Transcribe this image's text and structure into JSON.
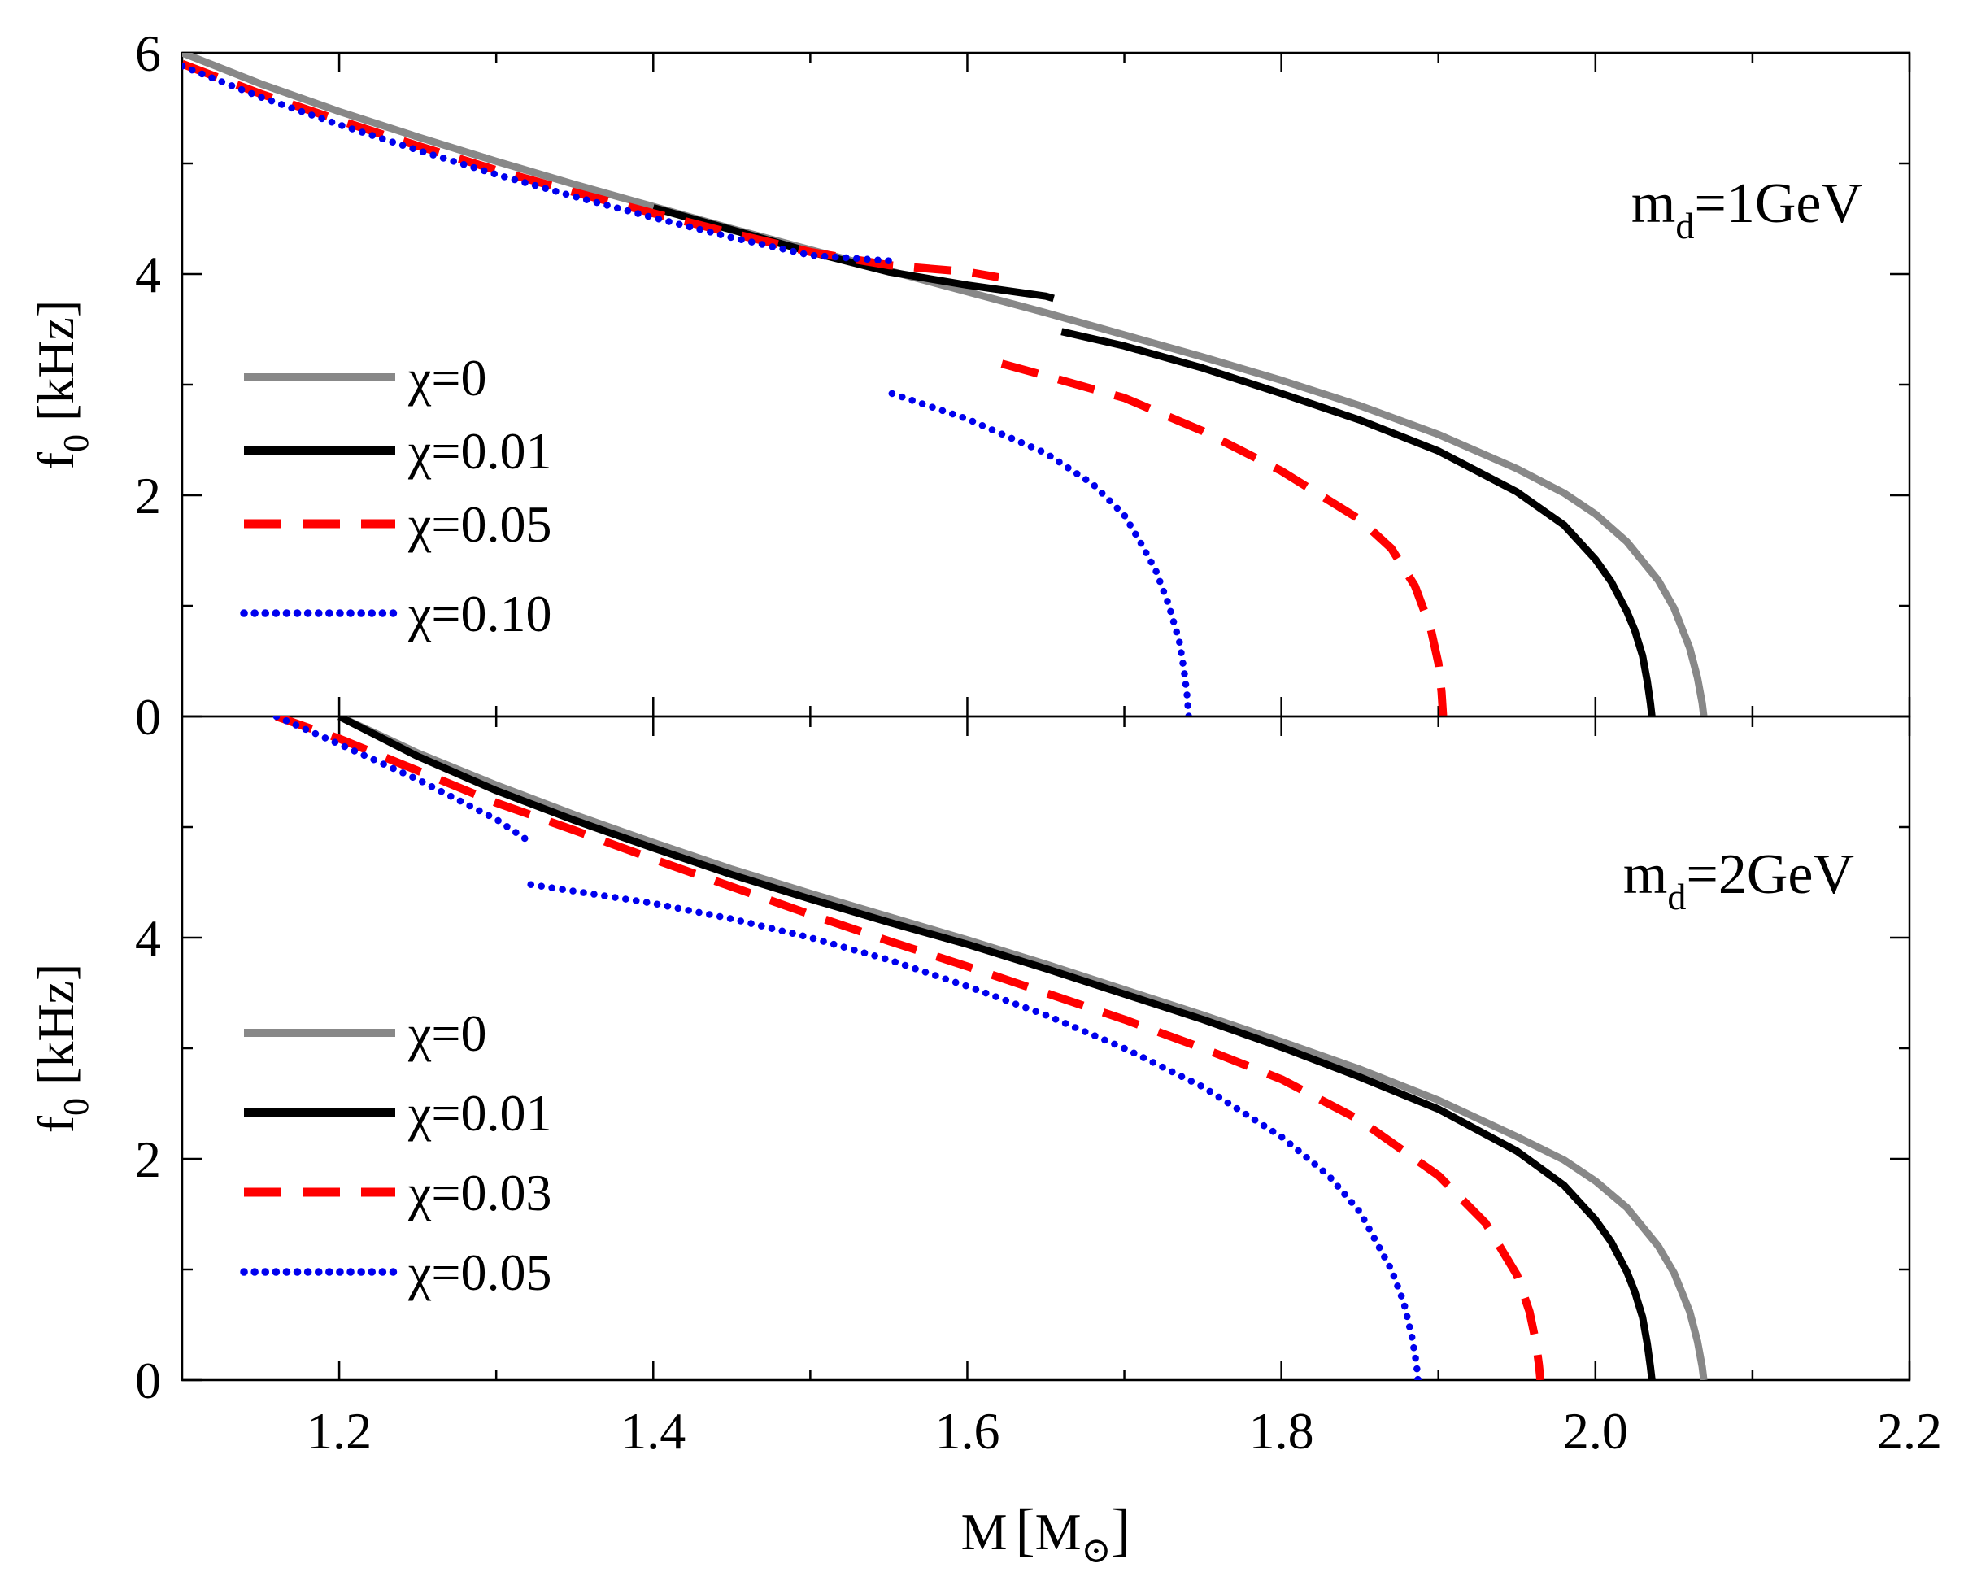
{
  "chart_data": [
    {
      "type": "line",
      "panel_label": {
        "main": "m",
        "sub": "d",
        "rest": "=1GeV"
      },
      "ylabel": {
        "main": "f",
        "sub": "0",
        "rest": " [kHz]"
      },
      "xlim": [
        1.1,
        2.2
      ],
      "ylim": [
        0,
        6
      ],
      "y_tick_labels": [
        "0",
        "2",
        "4",
        "6"
      ],
      "y_minor_ticks": [
        1,
        3,
        5
      ],
      "legend_placement": "left",
      "series": [
        {
          "name": "χ=0",
          "style": "solid",
          "color": "#888888",
          "x": [
            1.1,
            1.15,
            1.2,
            1.25,
            1.3,
            1.35,
            1.4,
            1.45,
            1.5,
            1.55,
            1.6,
            1.65,
            1.7,
            1.75,
            1.8,
            1.85,
            1.9,
            1.95,
            1.98,
            2.0,
            2.02,
            2.04,
            2.05,
            2.06,
            2.065,
            2.068,
            2.069
          ],
          "y": [
            6.0,
            5.72,
            5.47,
            5.24,
            5.02,
            4.81,
            4.61,
            4.41,
            4.22,
            4.03,
            3.84,
            3.65,
            3.45,
            3.25,
            3.04,
            2.81,
            2.55,
            2.24,
            2.02,
            1.83,
            1.58,
            1.23,
            0.98,
            0.62,
            0.35,
            0.12,
            0.0
          ]
        },
        {
          "name": "χ=0.01",
          "style": "solid",
          "color": "#000000",
          "x": [
            1.4,
            1.45,
            1.5,
            1.55,
            1.6,
            1.65,
            1.655,
            1.66,
            1.7,
            1.75,
            1.8,
            1.85,
            1.9,
            1.95,
            1.98,
            2.0,
            2.01,
            2.02,
            2.025,
            2.03,
            2.033,
            2.035,
            2.036
          ],
          "y": [
            4.6,
            4.4,
            4.2,
            4.02,
            3.9,
            3.8,
            3.78,
            3.48,
            3.35,
            3.15,
            2.92,
            2.68,
            2.4,
            2.03,
            1.73,
            1.42,
            1.22,
            0.95,
            0.78,
            0.55,
            0.32,
            0.12,
            0.0
          ]
        },
        {
          "name": "χ=0.05",
          "style": "dashed",
          "color": "#ff0000",
          "x": [
            1.1,
            1.15,
            1.2,
            1.25,
            1.3,
            1.35,
            1.4,
            1.45,
            1.5,
            1.55,
            1.6,
            1.62,
            1.622,
            1.65,
            1.7,
            1.75,
            1.8,
            1.85,
            1.87,
            1.885,
            1.895,
            1.9,
            1.902,
            1.903
          ],
          "y": [
            5.9,
            5.63,
            5.39,
            5.16,
            4.94,
            4.74,
            4.55,
            4.37,
            4.2,
            4.08,
            4.02,
            3.97,
            3.19,
            3.08,
            2.88,
            2.58,
            2.22,
            1.78,
            1.52,
            1.18,
            0.8,
            0.48,
            0.22,
            0.0
          ]
        },
        {
          "name": "χ=0.10",
          "style": "dotted",
          "color": "#0000ee",
          "x": [
            1.1,
            1.15,
            1.2,
            1.25,
            1.3,
            1.35,
            1.4,
            1.45,
            1.5,
            1.54,
            1.55,
            1.552,
            1.6,
            1.65,
            1.68,
            1.7,
            1.71,
            1.72,
            1.728,
            1.735,
            1.738,
            1.74,
            1.741
          ],
          "y": [
            5.88,
            5.6,
            5.35,
            5.12,
            4.9,
            4.7,
            4.51,
            4.33,
            4.17,
            4.13,
            4.12,
            2.92,
            2.69,
            2.38,
            2.1,
            1.82,
            1.58,
            1.32,
            1.02,
            0.68,
            0.42,
            0.18,
            0.0
          ]
        }
      ]
    },
    {
      "type": "line",
      "panel_label": {
        "main": "m",
        "sub": "d",
        "rest": "=2GeV"
      },
      "ylabel": {
        "main": "f",
        "sub": "0",
        "rest": " [kHz]"
      },
      "xlim": [
        1.1,
        2.2
      ],
      "ylim": [
        0,
        6
      ],
      "y_tick_labels": [
        "0",
        "2",
        "4"
      ],
      "y_minor_ticks": [
        1,
        3,
        5
      ],
      "legend_placement": "lower-left",
      "xlabel": {
        "main": "M",
        "open": "[",
        "unit": "M",
        "sub": "⊙",
        "close": "]"
      },
      "x_tick_values": [
        1.2,
        1.4,
        1.6,
        1.8,
        2.0,
        2.2
      ],
      "x_tick_labels": [
        "1.2",
        "1.4",
        "1.6",
        "1.8",
        "2.0",
        "2.2"
      ],
      "x_minor_ticks": [
        1.3,
        1.5,
        1.7,
        1.9,
        2.1
      ],
      "series": [
        {
          "name": "χ=0",
          "style": "solid",
          "color": "#888888",
          "x": [
            1.2,
            1.25,
            1.3,
            1.35,
            1.4,
            1.45,
            1.5,
            1.55,
            1.6,
            1.65,
            1.7,
            1.75,
            1.8,
            1.85,
            1.9,
            1.95,
            1.98,
            2.0,
            2.02,
            2.04,
            2.05,
            2.06,
            2.065,
            2.068,
            2.069
          ],
          "y": [
            6.0,
            5.67,
            5.38,
            5.11,
            4.86,
            4.62,
            4.4,
            4.19,
            3.98,
            3.76,
            3.53,
            3.3,
            3.06,
            2.81,
            2.53,
            2.2,
            1.99,
            1.8,
            1.56,
            1.21,
            0.97,
            0.62,
            0.35,
            0.12,
            0.0
          ]
        },
        {
          "name": "χ=0.01",
          "style": "solid",
          "color": "#000000",
          "x": [
            1.2,
            1.25,
            1.3,
            1.35,
            1.4,
            1.45,
            1.5,
            1.55,
            1.6,
            1.65,
            1.7,
            1.75,
            1.8,
            1.85,
            1.9,
            1.95,
            1.98,
            2.0,
            2.01,
            2.02,
            2.025,
            2.03,
            2.033,
            2.035,
            2.036
          ],
          "y": [
            6.0,
            5.64,
            5.33,
            5.06,
            4.81,
            4.57,
            4.35,
            4.14,
            3.94,
            3.72,
            3.49,
            3.26,
            3.01,
            2.74,
            2.45,
            2.07,
            1.76,
            1.45,
            1.25,
            0.98,
            0.8,
            0.57,
            0.33,
            0.12,
            0.0
          ]
        },
        {
          "name": "χ=0.03",
          "style": "dashed",
          "color": "#ff0000",
          "x": [
            1.16,
            1.2,
            1.25,
            1.3,
            1.35,
            1.4,
            1.45,
            1.5,
            1.55,
            1.6,
            1.65,
            1.7,
            1.75,
            1.8,
            1.85,
            1.9,
            1.93,
            1.95,
            1.958,
            1.962,
            1.964,
            1.965
          ],
          "y": [
            6.0,
            5.8,
            5.51,
            5.22,
            4.97,
            4.71,
            4.46,
            4.21,
            3.97,
            3.74,
            3.5,
            3.26,
            3.0,
            2.72,
            2.35,
            1.85,
            1.42,
            0.95,
            0.62,
            0.35,
            0.14,
            0.0
          ]
        },
        {
          "name": "χ=0.05",
          "style": "dotted",
          "color": "#0000ee",
          "x": [
            1.16,
            1.2,
            1.25,
            1.3,
            1.32,
            1.322,
            1.35,
            1.4,
            1.45,
            1.5,
            1.55,
            1.6,
            1.65,
            1.7,
            1.75,
            1.8,
            1.83,
            1.85,
            1.87,
            1.878,
            1.883,
            1.886,
            1.887
          ],
          "y": [
            6.0,
            5.75,
            5.43,
            5.07,
            4.88,
            4.48,
            4.42,
            4.31,
            4.17,
            4.0,
            3.8,
            3.56,
            3.3,
            3.0,
            2.65,
            2.2,
            1.85,
            1.52,
            1.0,
            0.7,
            0.4,
            0.15,
            0.0
          ]
        }
      ]
    }
  ]
}
